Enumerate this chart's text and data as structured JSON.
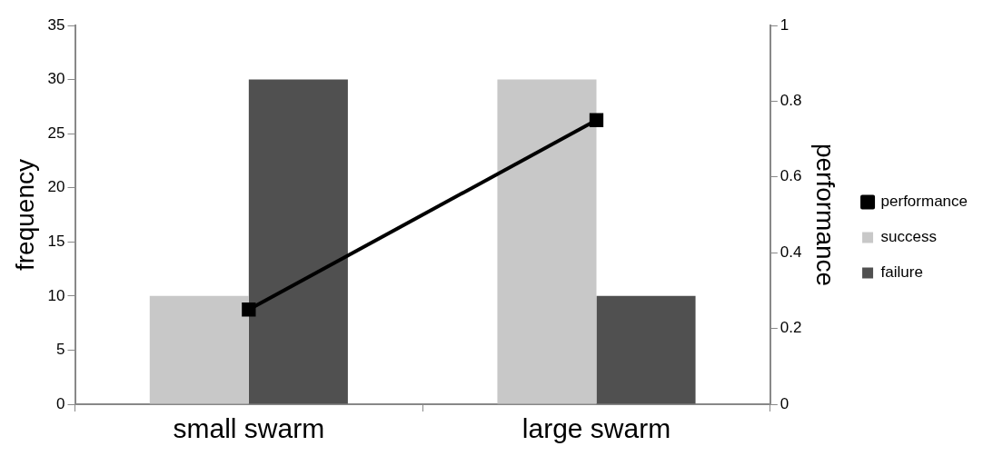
{
  "chart_data": {
    "type": "bar",
    "categories": [
      "small swarm",
      "large swarm"
    ],
    "series": [
      {
        "name": "success",
        "color": "#c8c8c8",
        "values": [
          10,
          30
        ]
      },
      {
        "name": "failure",
        "color": "#505050",
        "values": [
          30,
          10
        ]
      },
      {
        "name": "performance",
        "type": "line",
        "axis": "y2",
        "color": "#000000",
        "values": [
          0.25,
          0.75
        ]
      }
    ],
    "ylabel": "frequency",
    "y2label": "performance",
    "ylim": [
      0,
      35
    ],
    "yticks": [
      0,
      5,
      10,
      15,
      20,
      25,
      30,
      35
    ],
    "y2lim": [
      0,
      1
    ],
    "y2ticks": [
      0,
      0.2,
      0.4,
      0.6,
      0.8,
      1
    ],
    "grid": false,
    "legend": "right",
    "marker": "square",
    "line_style": "solid"
  }
}
